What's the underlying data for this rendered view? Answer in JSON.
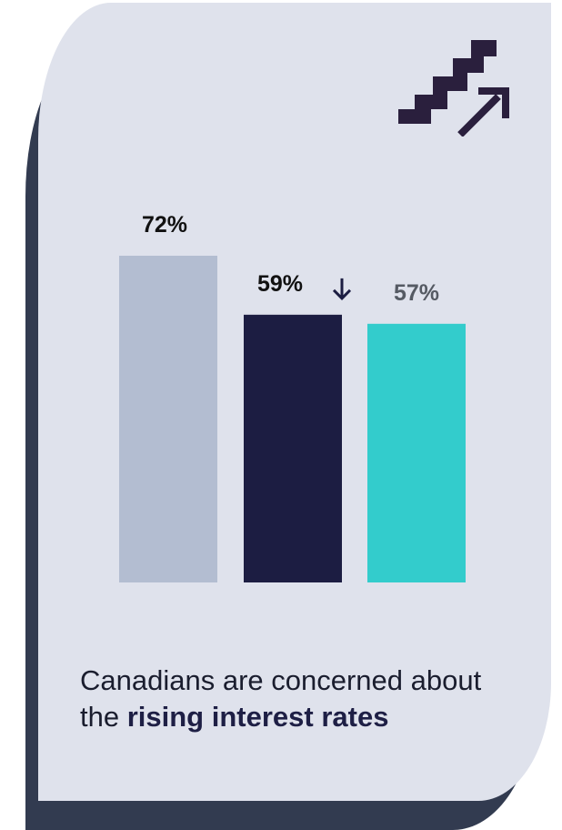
{
  "chart_data": {
    "type": "bar",
    "categories": [
      "",
      "",
      ""
    ],
    "values": [
      72,
      59,
      57
    ],
    "value_labels": [
      "72%",
      "59%",
      "57%"
    ],
    "colors": [
      "#b3bdd1",
      "#1c1d42",
      "#33cccc"
    ],
    "trend_marker": {
      "index": 1,
      "symbol": "↓"
    },
    "title": "",
    "xlabel": "",
    "ylabel": "",
    "ylim": [
      0,
      72
    ]
  },
  "icon": {
    "name": "stairs-up-arrow-icon",
    "color": "#2a1f3d"
  },
  "caption": {
    "text_1": "Canadians are concerned about the ",
    "text_bold": "rising interest rates"
  },
  "colors": {
    "card": "#dfe2ec",
    "shadow": "#323b50",
    "arrow": "#1c1d42"
  }
}
